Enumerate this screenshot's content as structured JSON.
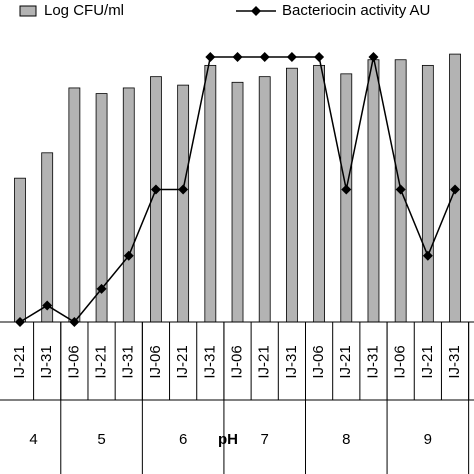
{
  "chart_data": {
    "type": "bar_line",
    "categories": [
      "IJ-21",
      "IJ-31",
      "IJ-06",
      "IJ-21",
      "IJ-31",
      "IJ-06",
      "IJ-21",
      "IJ-31",
      "IJ-06",
      "IJ-21",
      "IJ-31",
      "IJ-06",
      "IJ-21",
      "IJ-31",
      "IJ-06",
      "IJ-21",
      "IJ-31"
    ],
    "groups": [
      {
        "label": "4",
        "size": 2
      },
      {
        "label": "5",
        "size": 3
      },
      {
        "label": "6",
        "size": 3
      },
      {
        "label": "7",
        "size": 3
      },
      {
        "label": "8",
        "size": 3
      },
      {
        "label": "9",
        "size": 3
      }
    ],
    "group_axis_label": "pH",
    "series": [
      {
        "name": "Log CFU/ml",
        "color": "#b3b3b3",
        "kind": "bar",
        "values": [
          5.1,
          6.0,
          8.3,
          8.1,
          8.3,
          8.7,
          8.4,
          9.1,
          8.5,
          8.7,
          9.0,
          9.1,
          8.8,
          9.3,
          9.3,
          9.1,
          9.5
        ]
      },
      {
        "name": "Bacteriocin activity AU",
        "color": "#000000",
        "kind": "line",
        "axis": "y2",
        "values": [
          0,
          100,
          0,
          200,
          400,
          800,
          800,
          1600,
          1600,
          1600,
          1600,
          1600,
          800,
          1600,
          800,
          400,
          800
        ]
      }
    ],
    "ylim": [
      0,
      10
    ],
    "y2lim": [
      0,
      1600
    ]
  }
}
